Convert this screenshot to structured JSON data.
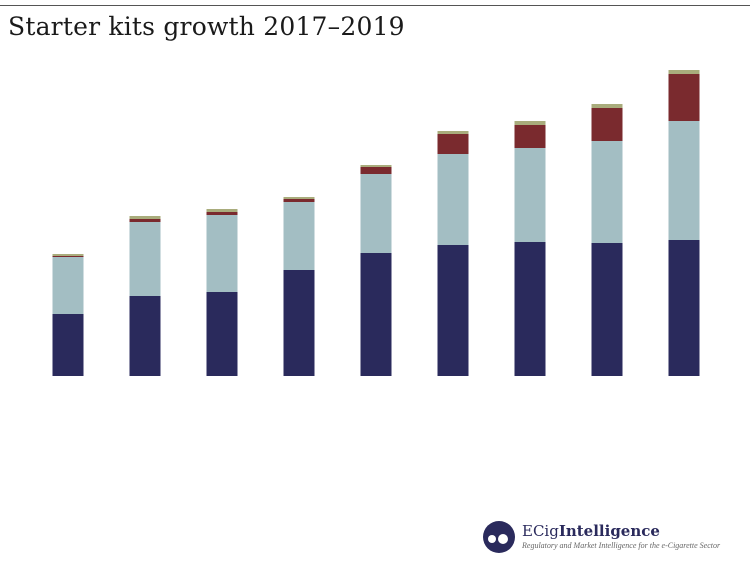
{
  "title": "Starter kits growth 2017–2019",
  "logo": {
    "brand_prefix": "ECig",
    "brand_suffix": "Intelligence",
    "tagline": "Regulatory and Market Intelligence for the e-Cigarette Sector"
  },
  "chart_data": {
    "type": "bar",
    "stacked": true,
    "title": "Starter kits growth 2017–2019",
    "xlabel": "",
    "ylabel": "",
    "categories": [
      "",
      "",
      "",
      "",
      "",
      "",
      "",
      "",
      ""
    ],
    "ylim": [
      0,
      316
    ],
    "grid": false,
    "axes_visible": false,
    "series": [
      {
        "color": "#2a2a5c",
        "values": [
          62,
          80,
          84,
          106,
          123,
          131,
          134,
          133,
          136
        ]
      },
      {
        "color": "#a3bec3",
        "values": [
          57,
          74,
          77,
          68,
          79,
          91,
          94,
          102,
          119
        ]
      },
      {
        "color": "#7a2a2e",
        "values": [
          1,
          3,
          3,
          3,
          7,
          20,
          23,
          33,
          47
        ]
      },
      {
        "color": "#a9ac7c",
        "values": [
          2,
          3,
          3,
          2,
          2,
          3,
          4,
          4,
          4
        ]
      }
    ]
  }
}
